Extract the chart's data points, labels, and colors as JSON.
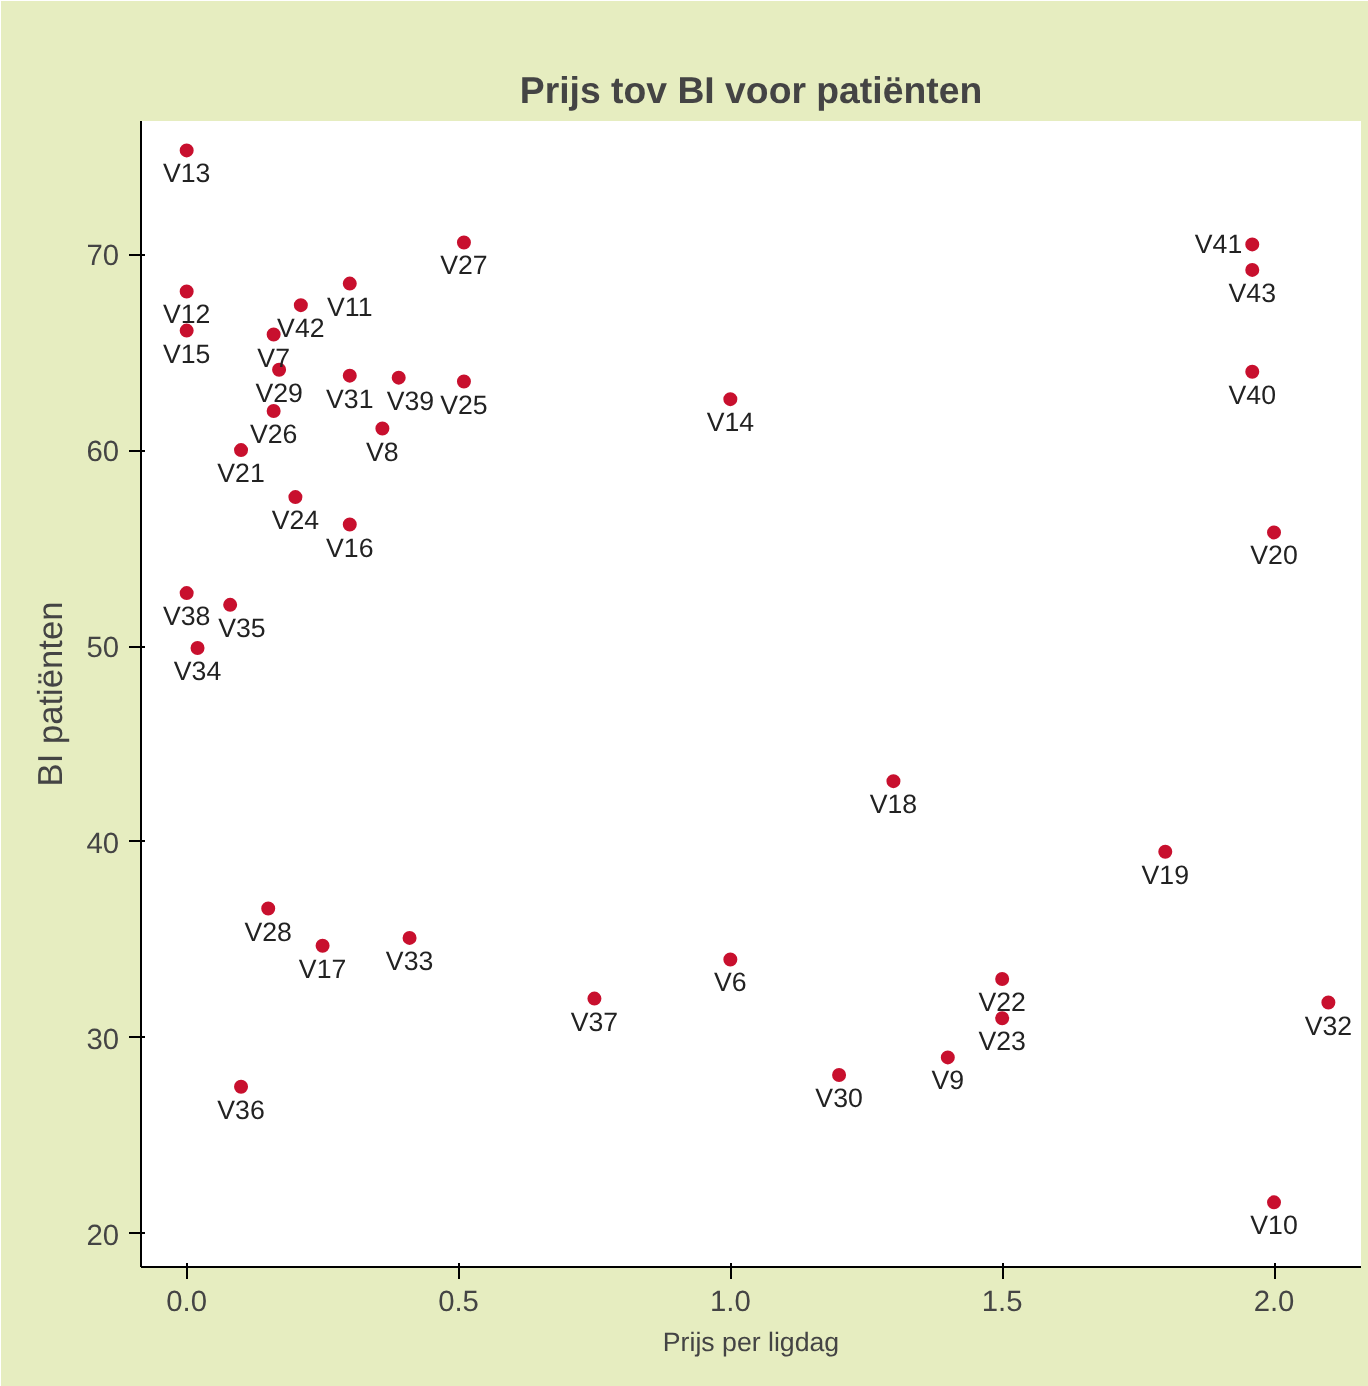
{
  "chart_data": {
    "type": "scatter",
    "title": "Prijs tov BI voor patiënten",
    "xlabel": "Prijs per ligdag",
    "ylabel": "BI patiënten",
    "x": [
      0.0,
      0.51,
      1.96,
      1.96,
      0.3,
      0.0,
      0.21,
      0.0,
      0.16,
      0.17,
      1.96,
      0.3,
      0.39,
      0.51,
      1.0,
      0.16,
      0.36,
      0.1,
      0.2,
      0.3,
      2.0,
      0.0,
      0.08,
      0.02,
      1.3,
      1.8,
      0.15,
      0.25,
      0.41,
      1.0,
      1.5,
      0.75,
      2.1,
      1.5,
      1.4,
      1.2,
      0.1,
      2.0
    ],
    "values": [
      75.3,
      70.6,
      70.5,
      69.2,
      68.5,
      68.1,
      67.4,
      66.1,
      65.9,
      64.1,
      64.0,
      63.8,
      63.7,
      63.5,
      62.6,
      62.0,
      61.1,
      60.0,
      57.6,
      56.2,
      55.8,
      52.7,
      52.1,
      49.9,
      43.1,
      39.5,
      36.6,
      34.7,
      35.1,
      34.0,
      33.0,
      32.0,
      31.8,
      31.0,
      29.0,
      28.1,
      27.5,
      21.6
    ],
    "value_labels": [
      "V13",
      "V27",
      "V41",
      "V43",
      "V11",
      "V12",
      "V42",
      "V15",
      "V7",
      "V29",
      "V40",
      "V31",
      "V39",
      "V25",
      "V14",
      "V26",
      "V8",
      "V21",
      "V24",
      "V16",
      "V20",
      "V38",
      "V35",
      "V34",
      "V18",
      "V19",
      "V28",
      "V17",
      "V33",
      "V6",
      "V22",
      "V37",
      "V32",
      "V23",
      "V9",
      "V30",
      "V36",
      "V10"
    ],
    "color": "#c8102e",
    "marker": "circle",
    "grid": false,
    "xlim": [
      -0.084,
      2.16
    ],
    "xticks": [
      {
        "value": 0,
        "label": "0.0"
      },
      {
        "value": 0.5,
        "label": "0.5"
      },
      {
        "value": 1,
        "label": "1.0"
      },
      {
        "value": 1.5,
        "label": "1.5"
      },
      {
        "value": 2,
        "label": "2.0"
      }
    ],
    "ylim": [
      18.3,
      76.8
    ],
    "yticks": [
      20,
      30,
      40,
      50,
      60,
      70
    ]
  }
}
